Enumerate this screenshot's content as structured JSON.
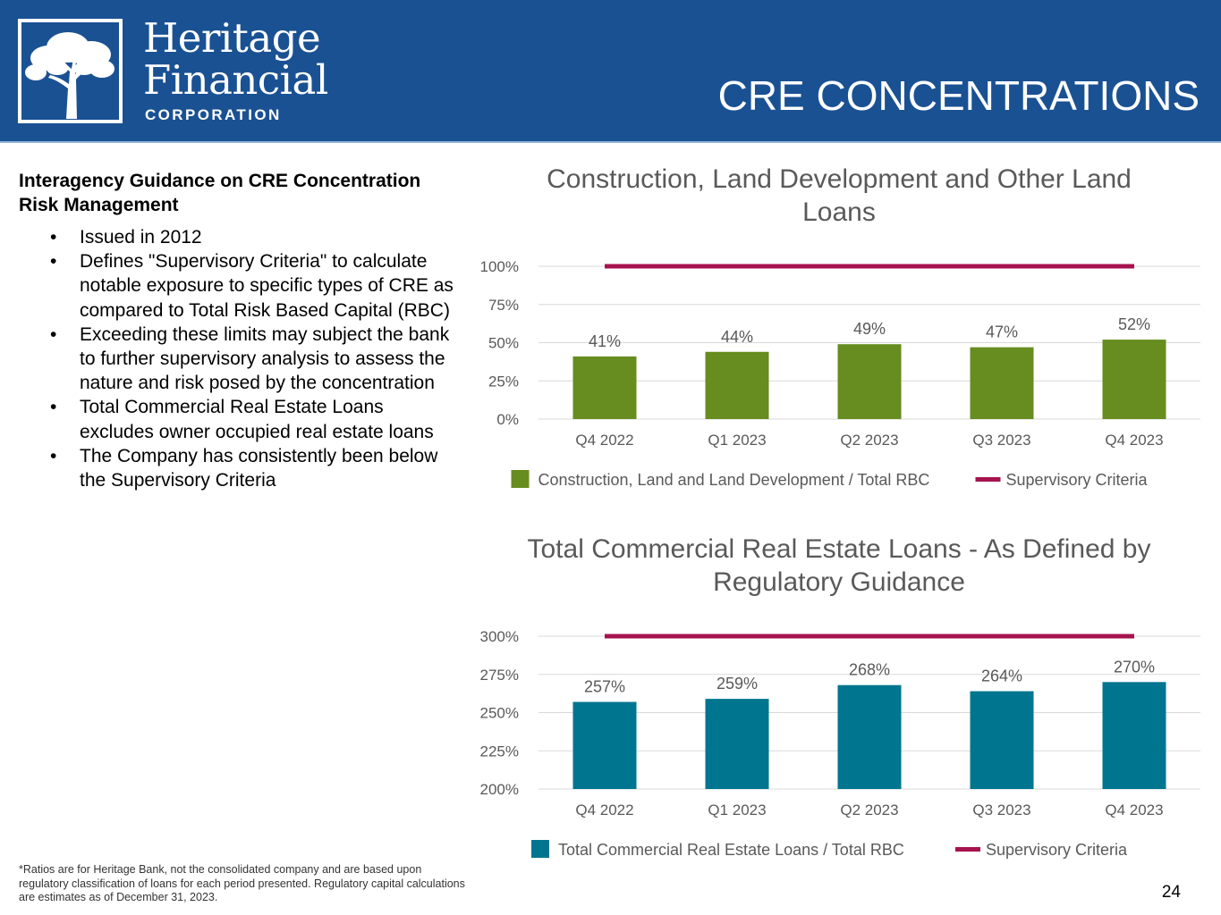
{
  "header": {
    "logo_line1": "Heritage",
    "logo_line2": "Financial",
    "logo_line3": "CORPORATION",
    "title": "CRE CONCENTRATIONS",
    "background_color": "#1a5193"
  },
  "left": {
    "heading": "Interagency Guidance on CRE Concentration Risk Management",
    "bullets": [
      "Issued in 2012",
      "Defines \"Supervisory Criteria\" to calculate notable exposure to specific types of CRE as compared to Total Risk Based Capital (RBC)",
      "Exceeding these limits may subject the bank to further supervisory analysis to assess the nature and risk posed by the concentration",
      "Total Commercial Real Estate Loans excludes owner occupied real estate loans",
      "The Company has consistently been below the Supervisory Criteria"
    ]
  },
  "footnote": "*Ratios are for Heritage Bank, not the consolidated company and are based upon regulatory classification of loans for each period presented.  Regulatory capital calculations are estimates as of December 31, 2023.",
  "page_number": "24",
  "chart_data": [
    {
      "type": "bar",
      "title_lines": [
        "Construction, Land Development and Other Land",
        "Loans"
      ],
      "categories": [
        "Q4 2022",
        "Q1 2023",
        "Q2 2023",
        "Q3 2023",
        "Q4 2023"
      ],
      "series": [
        {
          "name": "Construction, Land and Land Development / Total RBC",
          "values": [
            41,
            44,
            49,
            47,
            52
          ],
          "color": "#678c1f",
          "labels": [
            "41%",
            "44%",
            "49%",
            "47%",
            "52%"
          ]
        },
        {
          "name": "Supervisory Criteria",
          "type": "line",
          "values": [
            100,
            100,
            100,
            100,
            100
          ],
          "color": "#a6134f"
        }
      ],
      "ylim": [
        0,
        100
      ],
      "yticks": [
        0,
        25,
        50,
        75,
        100
      ],
      "ytick_labels": [
        "0%",
        "25%",
        "50%",
        "75%",
        "100%"
      ],
      "grid": true,
      "legend_position": "bottom"
    },
    {
      "type": "bar",
      "title_lines": [
        "Total Commercial Real Estate Loans - As Defined by",
        "Regulatory Guidance"
      ],
      "categories": [
        "Q4 2022",
        "Q1 2023",
        "Q2 2023",
        "Q3 2023",
        "Q4 2023"
      ],
      "series": [
        {
          "name": "Total Commercial Real Estate Loans / Total RBC",
          "values": [
            257,
            259,
            268,
            264,
            270
          ],
          "color": "#00758f",
          "labels": [
            "257%",
            "259%",
            "268%",
            "264%",
            "270%"
          ]
        },
        {
          "name": "Supervisory Criteria",
          "type": "line",
          "values": [
            300,
            300,
            300,
            300,
            300
          ],
          "color": "#a6134f"
        }
      ],
      "ylim": [
        200,
        300
      ],
      "yticks": [
        200,
        225,
        250,
        275,
        300
      ],
      "ytick_labels": [
        "200%",
        "225%",
        "250%",
        "275%",
        "300%"
      ],
      "grid": true,
      "legend_position": "bottom"
    }
  ]
}
